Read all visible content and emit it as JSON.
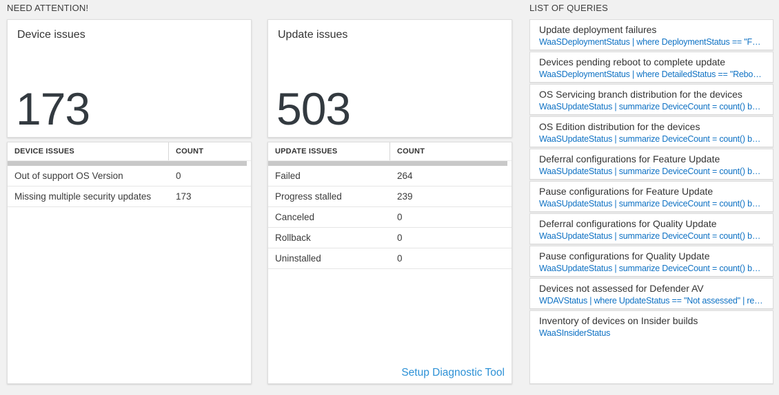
{
  "sections": {
    "need_attention_label": "NEED ATTENTION!",
    "list_of_queries_label": "LIST OF QUERIES"
  },
  "device_tile": {
    "title": "Device issues",
    "count": "173"
  },
  "device_table": {
    "headers": [
      "DEVICE ISSUES",
      "COUNT"
    ],
    "rows": [
      {
        "label": "Out of support OS Version",
        "count": "0"
      },
      {
        "label": "Missing multiple security updates",
        "count": "173"
      }
    ]
  },
  "update_tile": {
    "title": "Update issues",
    "count": "503"
  },
  "update_table": {
    "headers": [
      "UPDATE ISSUES",
      "COUNT"
    ],
    "rows": [
      {
        "label": "Failed",
        "count": "264"
      },
      {
        "label": "Progress stalled",
        "count": "239"
      },
      {
        "label": "Canceled",
        "count": "0"
      },
      {
        "label": "Rollback",
        "count": "0"
      },
      {
        "label": "Uninstalled",
        "count": "0"
      }
    ],
    "footer_link": "Setup Diagnostic Tool"
  },
  "queries": {
    "items": [
      {
        "title": "Update deployment failures",
        "query": "WaaSDeploymentStatus | where DeploymentStatus == \"Failed\" |..."
      },
      {
        "title": "Devices pending reboot to complete update",
        "query": "WaaSDeploymentStatus | where DetailedStatus == \"Reboot pend..."
      },
      {
        "title": "OS Servicing branch distribution for the devices",
        "query": "WaaSUpdateStatus | summarize DeviceCount = count() by OSSer..."
      },
      {
        "title": "OS Edition distribution for the devices",
        "query": "WaaSUpdateStatus | summarize DeviceCount = count() by OSEdit..."
      },
      {
        "title": "Deferral configurations for Feature Update",
        "query": "WaaSUpdateStatus | summarize DeviceCount = count() by Featur..."
      },
      {
        "title": "Pause configurations for Feature Update",
        "query": "WaaSUpdateStatus | summarize DeviceCount = count() by Featur..."
      },
      {
        "title": "Deferral configurations for Quality Update",
        "query": "WaaSUpdateStatus | summarize DeviceCount = count() by Qualit..."
      },
      {
        "title": "Pause configurations for Quality Update",
        "query": "WaaSUpdateStatus | summarize DeviceCount = count() by Qualit..."
      },
      {
        "title": "Devices not assessed for Defender AV",
        "query": "WDAVStatus | where UpdateStatus == \"Not assessed\" | render ta..."
      },
      {
        "title": "Inventory of devices on Insider builds",
        "query": "WaaSInsiderStatus"
      }
    ]
  },
  "colors": {
    "query_link_blue": "#0f72c4",
    "setup_link_blue": "#2d91d6",
    "big_count_text": "#333a40",
    "scrollbar_gray": "#c8c8c8",
    "page_background": "#f1f1f1"
  }
}
